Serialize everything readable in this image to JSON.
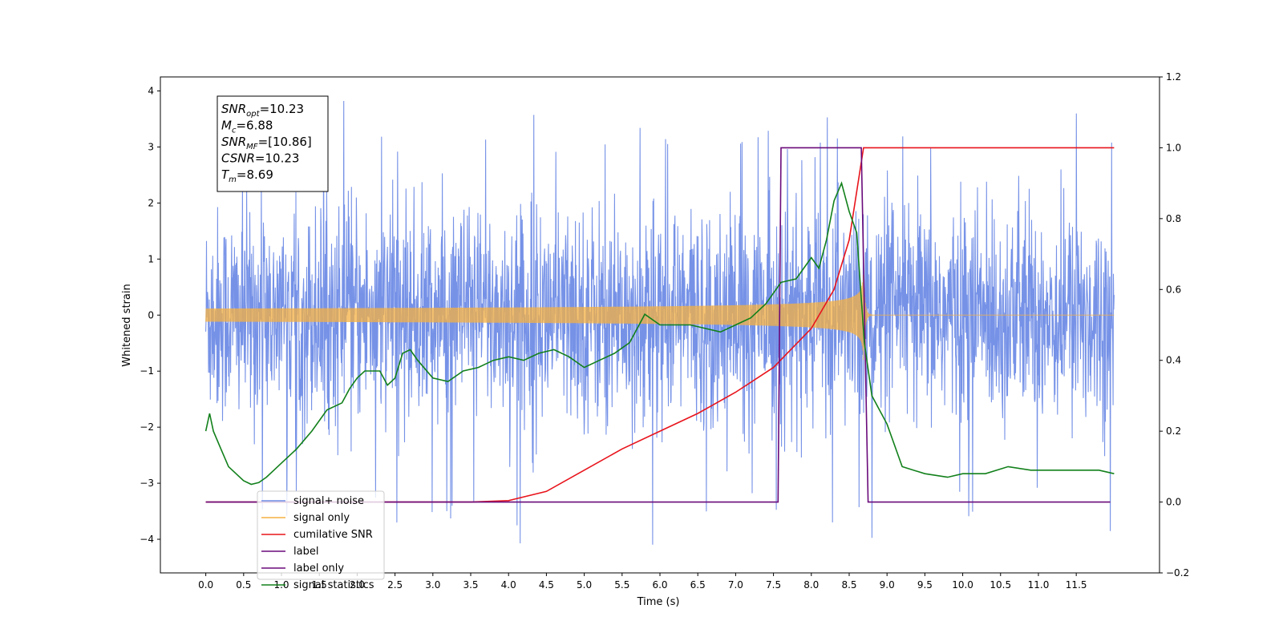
{
  "chart_data": {
    "type": "line",
    "xlabel": "Time (s)",
    "ylabel": "Whitened strain",
    "xlim": [
      -0.6,
      12.6
    ],
    "ylim": [
      -4.6,
      4.25
    ],
    "y2lim": [
      -0.2,
      1.2
    ],
    "grid": false,
    "legend_position": "lower-left",
    "x_ticks": [
      "0.0",
      "0.5",
      "1.0",
      "1.5",
      "2.0",
      "2.5",
      "3.0",
      "3.5",
      "4.0",
      "4.5",
      "5.0",
      "5.5",
      "6.0",
      "6.5",
      "7.0",
      "7.5",
      "8.0",
      "8.5",
      "9.0",
      "9.5",
      "10.0",
      "10.5",
      "11.0",
      "11.5"
    ],
    "y_ticks": [
      "4",
      "3",
      "2",
      "1",
      "0",
      "−1",
      "−2",
      "−3",
      "−4"
    ],
    "y2_ticks": [
      "1.2",
      "1.0",
      "0.8",
      "0.6",
      "0.4",
      "0.2",
      "0.0",
      "−0.2"
    ],
    "annotation": [
      {
        "name": "SNR",
        "sub": "opt",
        "value": "=10.23"
      },
      {
        "name": "M",
        "sub": "c",
        "value": "=6.88"
      },
      {
        "name": "SNR",
        "sub": "MF",
        "value": "=[10.86]"
      },
      {
        "name": "CSNR",
        "sub": "",
        "value": "=10.23"
      },
      {
        "name": "T",
        "sub": "m",
        "value": "=8.69"
      }
    ],
    "series": [
      {
        "name": "signal+ noise",
        "color": "#6f8ce6",
        "axis": "left",
        "x_range": [
          0.0,
          12.0
        ],
        "amplitude_std": 0.95,
        "spike_range": [
          -4.1,
          3.85
        ]
      },
      {
        "name": "signal only",
        "color": "#f5b042",
        "axis": "left",
        "x_range": [
          0.0,
          12.0
        ],
        "merger_time": 8.69,
        "peak_amplitude": 0.8
      },
      {
        "name": "cumilative SNR",
        "color": "#e8141c",
        "axis": "right",
        "x": [
          0.0,
          3.5,
          4.0,
          4.5,
          5.0,
          5.5,
          6.0,
          6.5,
          7.0,
          7.5,
          8.0,
          8.3,
          8.5,
          8.69,
          8.7,
          12.0
        ],
        "y": [
          0.0,
          0.0,
          0.004,
          0.03,
          0.09,
          0.15,
          0.2,
          0.25,
          0.31,
          0.38,
          0.49,
          0.6,
          0.74,
          1.0,
          1.0,
          1.0
        ]
      },
      {
        "name": "label",
        "color": "#6a0a7a",
        "axis": "right",
        "x": [
          0.0,
          7.56,
          7.6,
          8.66,
          8.75,
          11.95
        ],
        "y": [
          0.0,
          0.0,
          1.0,
          1.0,
          0.0,
          0.0
        ]
      },
      {
        "name": "label only",
        "color": "#6a0a7a",
        "axis": "right",
        "hidden_in_plot": true
      },
      {
        "name": "signal statistics",
        "color": "#12801b",
        "axis": "right",
        "x": [
          0.0,
          0.05,
          0.1,
          0.2,
          0.3,
          0.5,
          0.6,
          0.7,
          0.8,
          0.9,
          1.0,
          1.2,
          1.4,
          1.6,
          1.8,
          1.9,
          2.0,
          2.1,
          2.3,
          2.4,
          2.5,
          2.6,
          2.7,
          2.8,
          3.0,
          3.2,
          3.4,
          3.6,
          3.8,
          4.0,
          4.2,
          4.4,
          4.6,
          4.8,
          5.0,
          5.2,
          5.4,
          5.6,
          5.8,
          6.0,
          6.2,
          6.4,
          6.6,
          6.8,
          7.0,
          7.2,
          7.4,
          7.6,
          7.8,
          8.0,
          8.1,
          8.2,
          8.3,
          8.4,
          8.5,
          8.6,
          8.7,
          8.8,
          9.0,
          9.2,
          9.5,
          9.8,
          10.0,
          10.3,
          10.6,
          10.9,
          11.2,
          11.5,
          11.8,
          12.0
        ],
        "y": [
          0.2,
          0.25,
          0.2,
          0.15,
          0.1,
          0.06,
          0.05,
          0.055,
          0.07,
          0.09,
          0.11,
          0.15,
          0.2,
          0.26,
          0.28,
          0.32,
          0.35,
          0.37,
          0.37,
          0.33,
          0.35,
          0.42,
          0.43,
          0.4,
          0.35,
          0.34,
          0.37,
          0.38,
          0.4,
          0.41,
          0.4,
          0.42,
          0.43,
          0.41,
          0.38,
          0.4,
          0.42,
          0.45,
          0.53,
          0.5,
          0.5,
          0.5,
          0.49,
          0.48,
          0.5,
          0.52,
          0.56,
          0.62,
          0.63,
          0.69,
          0.66,
          0.74,
          0.85,
          0.9,
          0.82,
          0.76,
          0.45,
          0.3,
          0.22,
          0.1,
          0.08,
          0.07,
          0.08,
          0.08,
          0.1,
          0.09,
          0.09,
          0.09,
          0.09,
          0.08
        ]
      }
    ]
  }
}
